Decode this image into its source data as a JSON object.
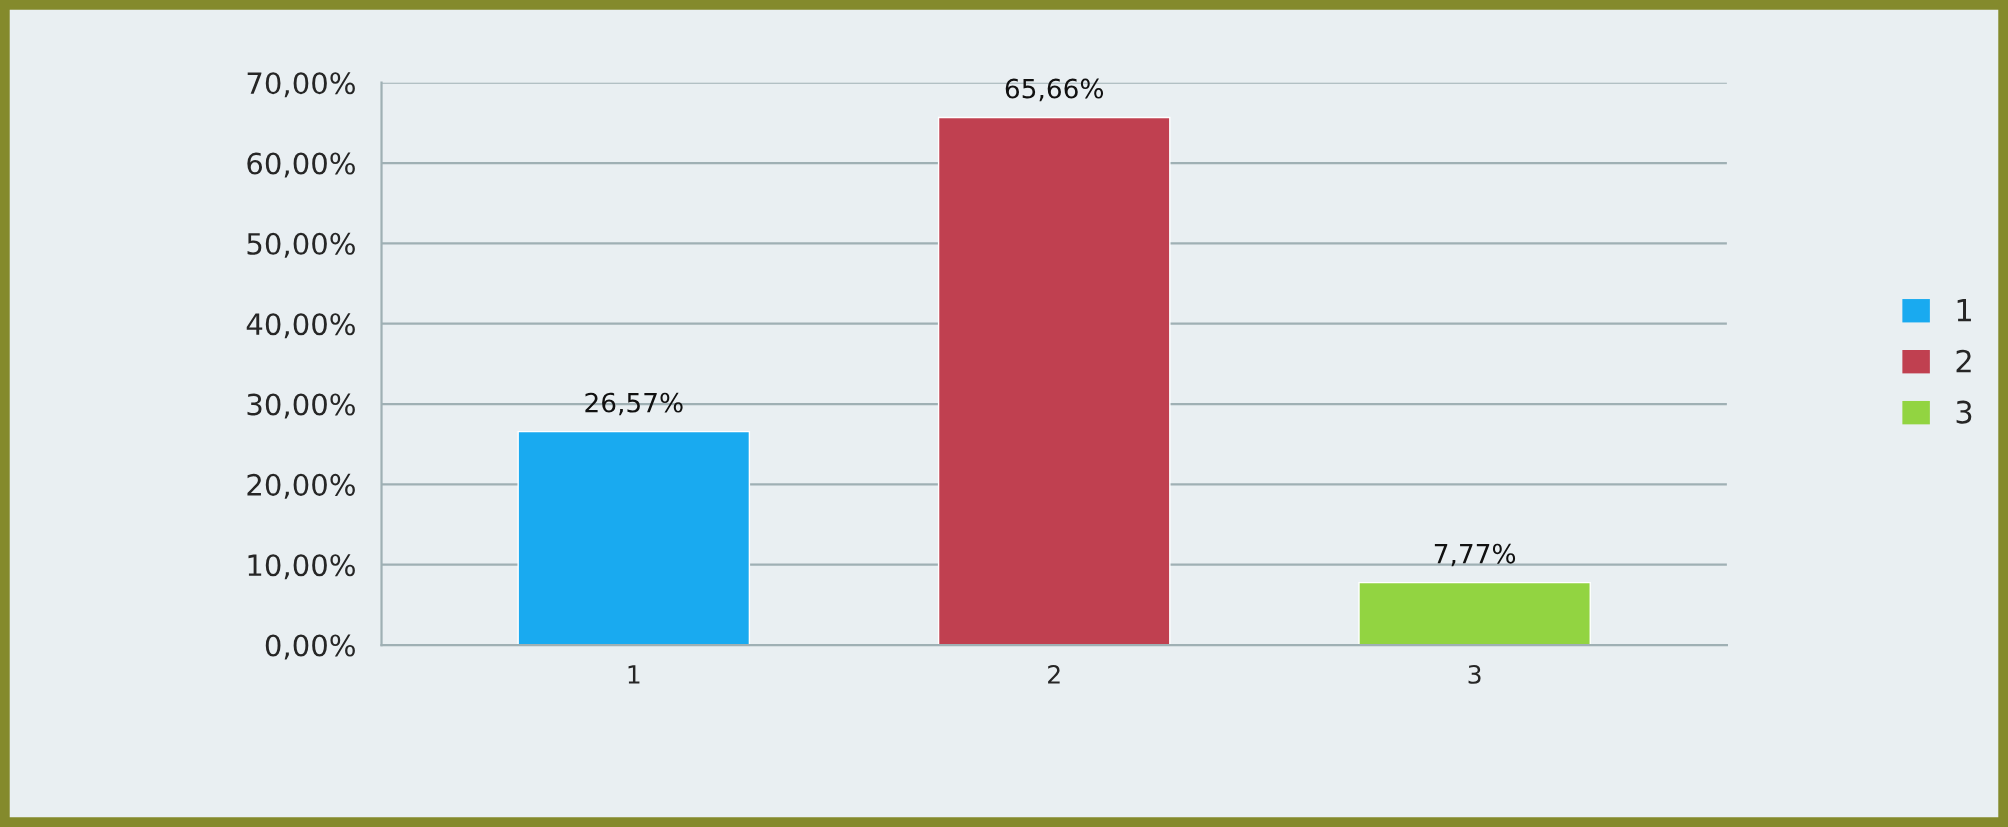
{
  "chart_data": {
    "type": "bar",
    "categories": [
      "1",
      "2",
      "3"
    ],
    "series": [
      {
        "name": "1",
        "color": "#19aaf0",
        "values": [
          26.57,
          null,
          null
        ],
        "value_labels": [
          "26,57%",
          null,
          null
        ]
      },
      {
        "name": "2",
        "color": "#c04050",
        "values": [
          null,
          65.66,
          null
        ],
        "value_labels": [
          null,
          "65,66%",
          null
        ]
      },
      {
        "name": "3",
        "color": "#92d441",
        "values": [
          null,
          null,
          7.77
        ],
        "value_labels": [
          null,
          null,
          "7,77%"
        ]
      }
    ],
    "ylim": [
      0,
      70
    ],
    "yticks": [
      {
        "value": 0,
        "label": "0,00%"
      },
      {
        "value": 10,
        "label": "10,00%"
      },
      {
        "value": 20,
        "label": "20,00%"
      },
      {
        "value": 30,
        "label": "30,00%"
      },
      {
        "value": 40,
        "label": "40,00%"
      },
      {
        "value": 50,
        "label": "50,00%"
      },
      {
        "value": 60,
        "label": "60,00%"
      },
      {
        "value": 70,
        "label": "70,00%"
      }
    ],
    "grid": "y",
    "legend": "right"
  }
}
